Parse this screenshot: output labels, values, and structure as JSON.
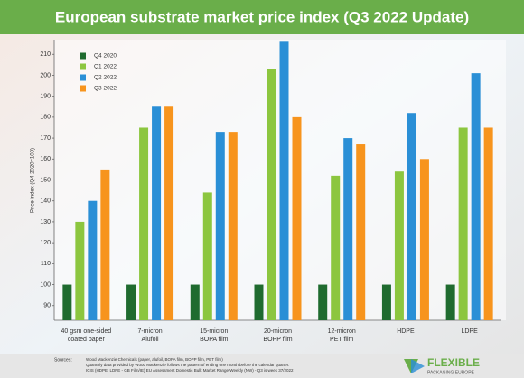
{
  "chart_data": {
    "type": "bar",
    "title": "European substrate market price index (Q3 2022 Update)",
    "y_label": "Price index (Q4 2020=100)",
    "categories": [
      [
        "40 gsm one-sided",
        "coated paper"
      ],
      [
        "7-micron",
        "Alufoil"
      ],
      [
        "15-micron",
        "BOPA film"
      ],
      [
        "20-micron",
        "BOPP film"
      ],
      [
        "12-micron",
        "PET film"
      ],
      [
        "HDPE"
      ],
      [
        "LDPE"
      ]
    ],
    "series": [
      {
        "name": "Q4 2020",
        "color": "#1f6b2f",
        "values": [
          100,
          100,
          100,
          100,
          100,
          100,
          100
        ]
      },
      {
        "name": "Q1 2022",
        "color": "#8cc63f",
        "values": [
          130,
          175,
          144,
          203,
          152,
          154,
          175
        ]
      },
      {
        "name": "Q2 2022",
        "color": "#2a8fd6",
        "values": [
          140,
          185,
          173,
          216,
          170,
          182,
          201
        ]
      },
      {
        "name": "Q3 2022",
        "color": "#f7941d",
        "values": [
          155,
          185,
          173,
          180,
          167,
          160,
          175
        ]
      }
    ],
    "ylim": [
      83,
      217
    ],
    "yticks": [
      90,
      100,
      110,
      120,
      130,
      140,
      150,
      160,
      170,
      180,
      190,
      200,
      210
    ],
    "legend": "top-left"
  },
  "footer": {
    "label": "Sources:",
    "lines": [
      "Wood Mackenzie Chemicals (paper, alufoil, BOPA film, BOPP film, PET film)",
      "Quarterly data provided by Wood Mackenzie follows the pattern of ending one month before the calendar quarter.",
      "ICIS (HDPE, LDPE - GB Film/IE) EU Assessment Domestic Bulk Market Range Weekly (NW) - Q3 is week 37/2022"
    ]
  },
  "logo": {
    "name": "FLEXIBLE",
    "sub": "PACKAGING EUROPE"
  }
}
